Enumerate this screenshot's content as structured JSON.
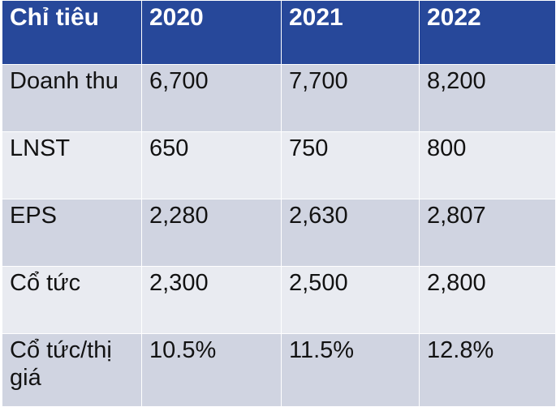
{
  "table": {
    "headers": [
      "Chỉ tiêu",
      "2020",
      "2021",
      "2022"
    ],
    "rows": [
      [
        "Doanh thu",
        "6,700",
        "7,700",
        "8,200"
      ],
      [
        "LNST",
        "650",
        "750",
        "800"
      ],
      [
        "EPS",
        "2,280",
        "2,630",
        "2,807"
      ],
      [
        "Cổ tức",
        "2,300",
        "2,500",
        "2,800"
      ],
      [
        "Cổ tức/thị giá",
        "10.5%",
        "11.5%",
        "12.8%"
      ]
    ]
  },
  "colors": {
    "header_bg": "#27489a",
    "header_text": "#ffffff",
    "row_dark": "#d0d4e1",
    "row_light": "#e9ebf1",
    "cell_text": "#121212"
  }
}
